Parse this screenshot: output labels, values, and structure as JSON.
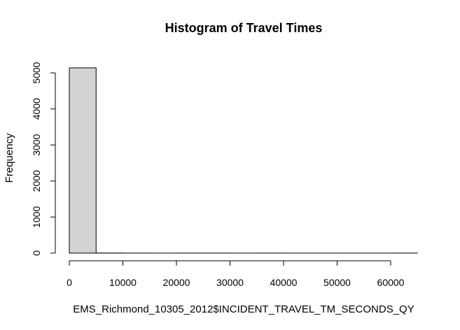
{
  "chart_data": {
    "type": "bar",
    "title": "Histogram of Travel Times",
    "xlabel": "EMS_Richmond_10305_2012$INCIDENT_TRAVEL_TM_SECONDS_QY",
    "ylabel": "Frequency",
    "bin_edges": [
      0,
      5000,
      10000,
      15000,
      20000,
      25000,
      30000,
      35000,
      40000,
      45000,
      50000,
      55000,
      60000,
      65000
    ],
    "values": [
      5140,
      3,
      1,
      0,
      1,
      1,
      0,
      1,
      0,
      0,
      0,
      0,
      1
    ],
    "xlim": [
      0,
      65000
    ],
    "ylim": [
      0,
      5140
    ],
    "x_ticks": [
      0,
      10000,
      20000,
      30000,
      40000,
      50000,
      60000
    ],
    "y_ticks": [
      0,
      1000,
      2000,
      3000,
      4000,
      5000
    ],
    "bar_color": "#d3d3d3",
    "grid": false,
    "legend": false
  }
}
